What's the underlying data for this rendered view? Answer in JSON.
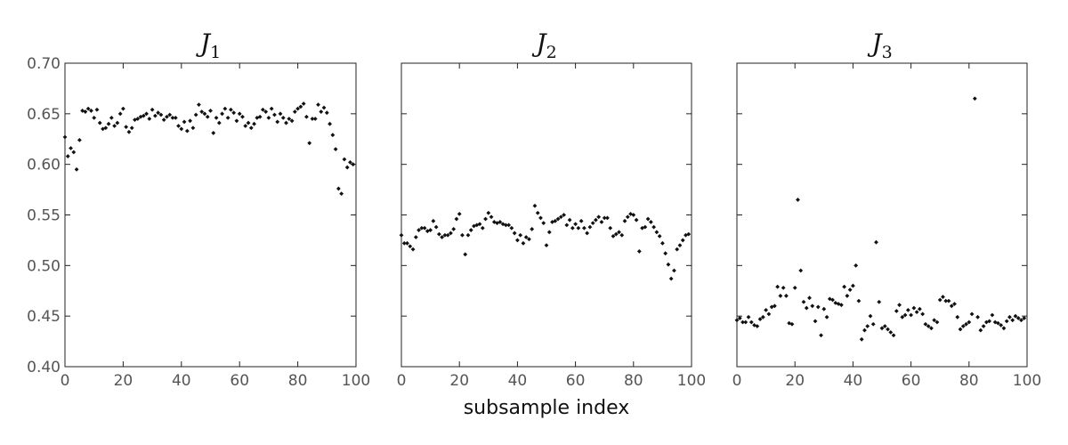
{
  "chart_data": [
    {
      "type": "scatter",
      "title": "J",
      "title_subscript": "1",
      "xlim": [
        0,
        100
      ],
      "ylim": [
        0.4,
        0.7
      ],
      "xticks": [
        "0",
        "20",
        "40",
        "60",
        "80",
        "100"
      ],
      "yticks": [
        "0.40",
        "0.45",
        "0.50",
        "0.55",
        "0.60",
        "0.65",
        "0.70"
      ],
      "show_yticklabels": true,
      "grid": false,
      "series": [
        {
          "x": [
            0,
            1,
            2,
            3,
            4,
            5,
            6,
            7,
            8,
            9,
            10,
            11,
            12,
            13,
            14,
            15,
            16,
            17,
            18,
            19,
            20,
            21,
            22,
            23,
            24,
            25,
            26,
            27,
            28,
            29,
            30,
            31,
            32,
            33,
            34,
            35,
            36,
            37,
            38,
            39,
            40,
            41,
            42,
            43,
            44,
            45,
            46,
            47,
            48,
            49,
            50,
            51,
            52,
            53,
            54,
            55,
            56,
            57,
            58,
            59,
            60,
            61,
            62,
            63,
            64,
            65,
            66,
            67,
            68,
            69,
            70,
            71,
            72,
            73,
            74,
            75,
            76,
            77,
            78,
            79,
            80,
            81,
            82,
            83,
            84,
            85,
            86,
            87,
            88,
            89,
            90,
            91,
            92,
            93,
            94,
            95,
            96,
            97,
            98,
            99
          ],
          "y": [
            0.627,
            0.608,
            0.616,
            0.612,
            0.595,
            0.624,
            0.653,
            0.652,
            0.655,
            0.653,
            0.646,
            0.654,
            0.641,
            0.635,
            0.636,
            0.64,
            0.646,
            0.638,
            0.641,
            0.65,
            0.655,
            0.637,
            0.632,
            0.636,
            0.644,
            0.645,
            0.647,
            0.648,
            0.65,
            0.645,
            0.654,
            0.648,
            0.651,
            0.649,
            0.644,
            0.647,
            0.649,
            0.646,
            0.646,
            0.638,
            0.635,
            0.642,
            0.633,
            0.643,
            0.636,
            0.649,
            0.659,
            0.652,
            0.65,
            0.647,
            0.653,
            0.631,
            0.646,
            0.641,
            0.65,
            0.655,
            0.646,
            0.654,
            0.651,
            0.643,
            0.65,
            0.647,
            0.638,
            0.641,
            0.636,
            0.64,
            0.646,
            0.647,
            0.654,
            0.652,
            0.646,
            0.655,
            0.649,
            0.642,
            0.65,
            0.646,
            0.641,
            0.645,
            0.643,
            0.652,
            0.655,
            0.657,
            0.66,
            0.647,
            0.621,
            0.645,
            0.645,
            0.659,
            0.652,
            0.656,
            0.651,
            0.64,
            0.629,
            0.615,
            0.576,
            0.571,
            0.605,
            0.597,
            0.602,
            0.6
          ]
        }
      ]
    },
    {
      "type": "scatter",
      "title": "J",
      "title_subscript": "2",
      "xlim": [
        0,
        100
      ],
      "ylim": [
        0.4,
        0.7
      ],
      "xticks": [
        "0",
        "20",
        "40",
        "60",
        "80",
        "100"
      ],
      "show_yticklabels": false,
      "grid": false,
      "series": [
        {
          "x": [
            0,
            1,
            2,
            3,
            4,
            5,
            6,
            7,
            8,
            9,
            10,
            11,
            12,
            13,
            14,
            15,
            16,
            17,
            18,
            19,
            20,
            21,
            22,
            23,
            24,
            25,
            26,
            27,
            28,
            29,
            30,
            31,
            32,
            33,
            34,
            35,
            36,
            37,
            38,
            39,
            40,
            41,
            42,
            43,
            44,
            45,
            46,
            47,
            48,
            49,
            50,
            51,
            52,
            53,
            54,
            55,
            56,
            57,
            58,
            59,
            60,
            61,
            62,
            63,
            64,
            65,
            66,
            67,
            68,
            69,
            70,
            71,
            72,
            73,
            74,
            75,
            76,
            77,
            78,
            79,
            80,
            81,
            82,
            83,
            84,
            85,
            86,
            87,
            88,
            89,
            90,
            91,
            92,
            93,
            94,
            95,
            96,
            97,
            98,
            99
          ],
          "y": [
            0.53,
            0.522,
            0.522,
            0.519,
            0.516,
            0.528,
            0.535,
            0.537,
            0.537,
            0.534,
            0.535,
            0.544,
            0.538,
            0.531,
            0.528,
            0.53,
            0.53,
            0.532,
            0.536,
            0.546,
            0.551,
            0.53,
            0.511,
            0.53,
            0.535,
            0.539,
            0.54,
            0.541,
            0.537,
            0.546,
            0.552,
            0.548,
            0.543,
            0.542,
            0.543,
            0.541,
            0.54,
            0.54,
            0.537,
            0.532,
            0.525,
            0.53,
            0.522,
            0.528,
            0.526,
            0.536,
            0.559,
            0.552,
            0.547,
            0.542,
            0.52,
            0.533,
            0.543,
            0.544,
            0.546,
            0.548,
            0.55,
            0.54,
            0.545,
            0.537,
            0.541,
            0.537,
            0.544,
            0.537,
            0.532,
            0.538,
            0.542,
            0.545,
            0.548,
            0.543,
            0.547,
            0.547,
            0.537,
            0.529,
            0.531,
            0.533,
            0.53,
            0.544,
            0.548,
            0.551,
            0.55,
            0.545,
            0.514,
            0.537,
            0.538,
            0.546,
            0.543,
            0.538,
            0.533,
            0.529,
            0.522,
            0.512,
            0.501,
            0.487,
            0.495,
            0.516,
            0.52,
            0.525,
            0.53,
            0.531
          ]
        }
      ]
    },
    {
      "type": "scatter",
      "title": "J",
      "title_subscript": "3",
      "xlim": [
        0,
        100
      ],
      "ylim": [
        0.4,
        0.7
      ],
      "xticks": [
        "0",
        "20",
        "40",
        "60",
        "80",
        "100"
      ],
      "show_yticklabels": false,
      "grid": false,
      "series": [
        {
          "x": [
            0,
            1,
            2,
            3,
            4,
            5,
            6,
            7,
            8,
            9,
            10,
            11,
            12,
            13,
            14,
            15,
            16,
            17,
            18,
            19,
            20,
            21,
            22,
            23,
            24,
            25,
            26,
            27,
            28,
            29,
            30,
            31,
            32,
            33,
            34,
            35,
            36,
            37,
            38,
            39,
            40,
            41,
            42,
            43,
            44,
            45,
            46,
            47,
            48,
            49,
            50,
            51,
            52,
            53,
            54,
            55,
            56,
            57,
            58,
            59,
            60,
            61,
            62,
            63,
            64,
            65,
            66,
            67,
            68,
            69,
            70,
            71,
            72,
            73,
            74,
            75,
            76,
            77,
            78,
            79,
            80,
            81,
            82,
            83,
            84,
            85,
            86,
            87,
            88,
            89,
            90,
            91,
            92,
            93,
            94,
            95,
            96,
            97,
            98,
            99
          ],
          "y": [
            0.446,
            0.448,
            0.444,
            0.444,
            0.449,
            0.444,
            0.441,
            0.44,
            0.447,
            0.449,
            0.456,
            0.452,
            0.459,
            0.46,
            0.479,
            0.47,
            0.478,
            0.47,
            0.443,
            0.442,
            0.478,
            0.565,
            0.495,
            0.464,
            0.458,
            0.468,
            0.46,
            0.445,
            0.459,
            0.431,
            0.457,
            0.449,
            0.467,
            0.466,
            0.463,
            0.462,
            0.461,
            0.479,
            0.47,
            0.476,
            0.48,
            0.5,
            0.465,
            0.427,
            0.436,
            0.44,
            0.45,
            0.442,
            0.523,
            0.464,
            0.438,
            0.44,
            0.437,
            0.434,
            0.431,
            0.455,
            0.461,
            0.449,
            0.451,
            0.456,
            0.451,
            0.458,
            0.454,
            0.457,
            0.452,
            0.442,
            0.44,
            0.438,
            0.446,
            0.444,
            0.466,
            0.469,
            0.465,
            0.465,
            0.46,
            0.462,
            0.449,
            0.437,
            0.44,
            0.442,
            0.444,
            0.452,
            0.665,
            0.449,
            0.436,
            0.44,
            0.444,
            0.445,
            0.451,
            0.444,
            0.443,
            0.441,
            0.438,
            0.445,
            0.449,
            0.446,
            0.45,
            0.448,
            0.446,
            0.448
          ]
        }
      ]
    }
  ],
  "shared_xlabel": "subsample index"
}
